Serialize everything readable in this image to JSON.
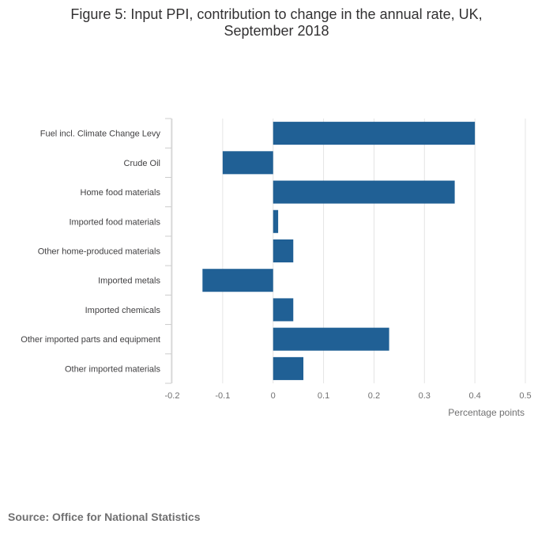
{
  "title_line1": "Figure 5: Input PPI, contribution to change in the annual rate, UK,",
  "title_line2": "September 2018",
  "source": "Source: Office for National Statistics",
  "chart_data": {
    "type": "bar",
    "orientation": "horizontal",
    "categories": [
      "Fuel incl. Climate Change Levy",
      "Crude Oil",
      "Home food materials",
      "Imported food materials",
      "Other home-produced materials",
      "Imported metals",
      "Imported chemicals",
      "Other imported parts and equipment",
      "Other imported materials"
    ],
    "values": [
      0.4,
      -0.1,
      0.36,
      0.01,
      0.04,
      -0.14,
      0.04,
      0.23,
      0.06
    ],
    "xlim": [
      -0.2,
      0.5
    ],
    "xticks": [
      -0.2,
      -0.1,
      0,
      0.1,
      0.2,
      0.3,
      0.4,
      0.5
    ],
    "xtick_labels": [
      "-0.2",
      "-0.1",
      "0",
      "0.1",
      "0.2",
      "0.3",
      "0.4",
      "0.5"
    ],
    "xlabel": "Percentage points",
    "bar_color": "#206095",
    "grid": true
  }
}
